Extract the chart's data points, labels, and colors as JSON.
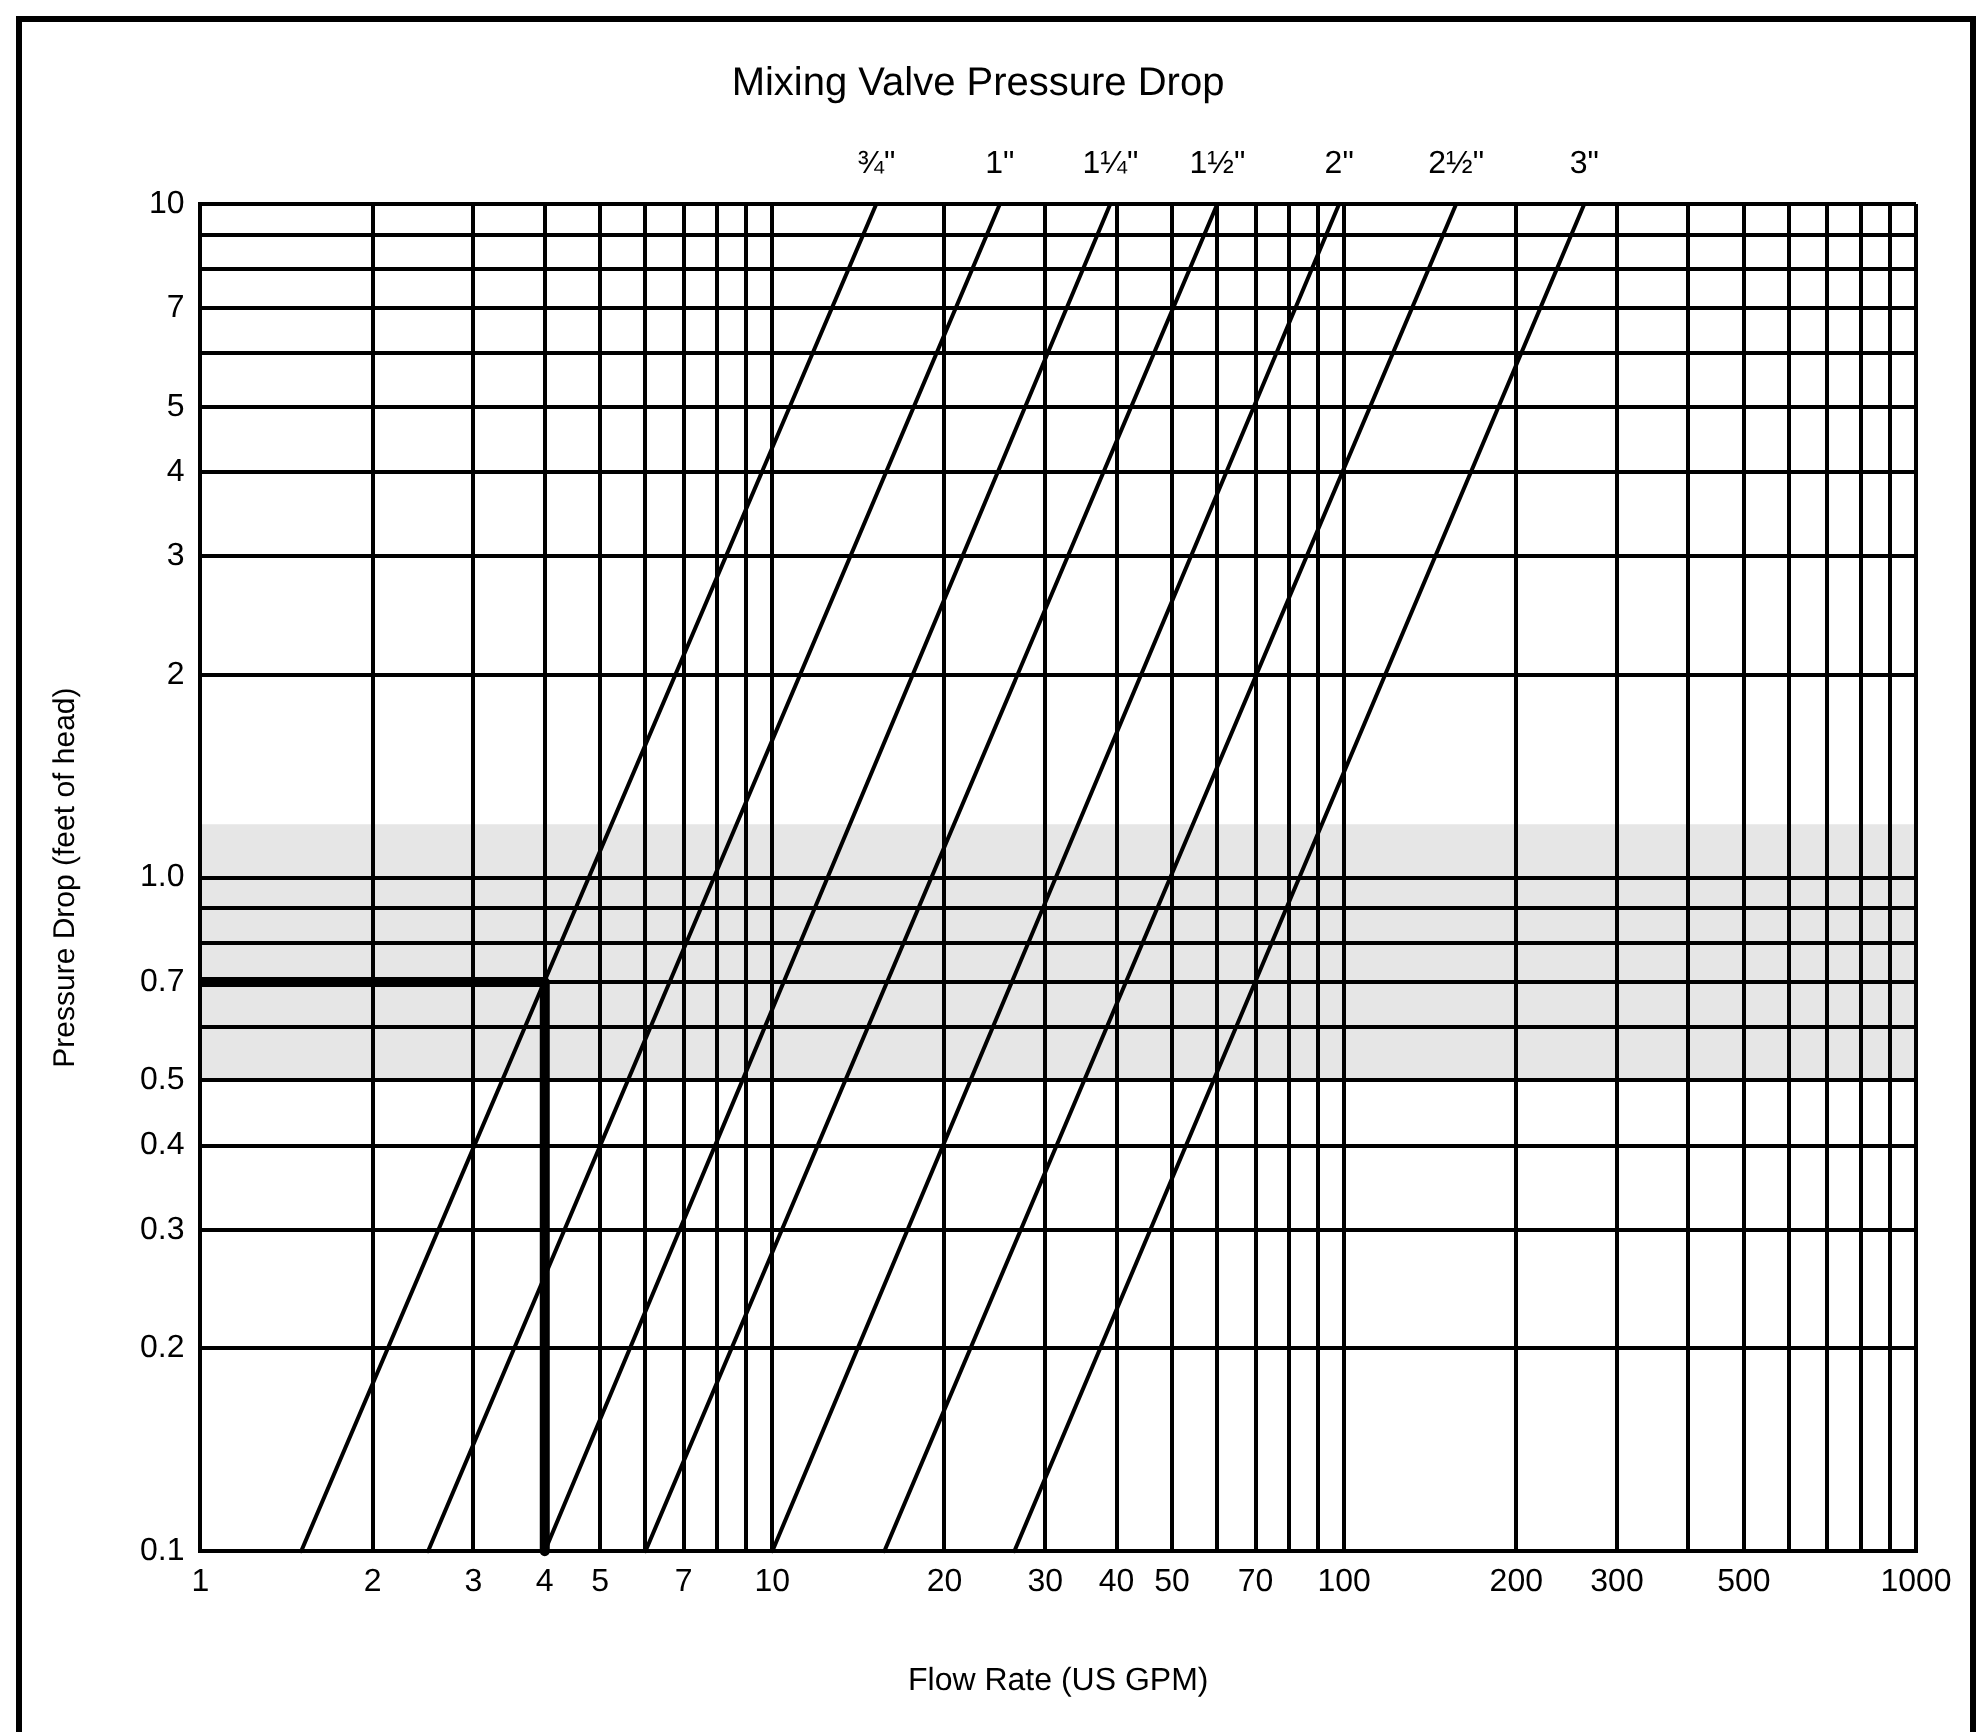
{
  "chart_data": {
    "type": "line",
    "title": "Mixing Valve Pressure Drop",
    "xlabel": "Flow Rate (US GPM)",
    "ylabel": "Pressure Drop (feet of head)",
    "log": "xy",
    "grid": true,
    "legend": false,
    "marker": "none",
    "line_style": "solid",
    "xlim": [
      1,
      1000
    ],
    "ylim": [
      0.1,
      10
    ],
    "xticks": [
      1,
      2,
      3,
      4,
      5,
      {
        "value": 6,
        "label": null
      },
      7,
      {
        "value": 8,
        "label": null
      },
      {
        "value": 9,
        "label": null
      },
      10,
      20,
      30,
      40,
      50,
      {
        "value": 60,
        "label": null
      },
      70,
      {
        "value": 80,
        "label": null
      },
      {
        "value": 90,
        "label": null
      },
      100,
      200,
      300,
      {
        "value": 400,
        "label": null
      },
      500,
      {
        "value": 600,
        "label": null
      },
      {
        "value": 700,
        "label": null
      },
      {
        "value": 800,
        "label": null
      },
      {
        "value": 900,
        "label": null
      },
      1000
    ],
    "yticks": [
      {
        "value": 0.1,
        "label": "0.1"
      },
      0.2,
      0.3,
      0.4,
      0.5,
      {
        "value": 0.6,
        "label": null
      },
      0.7,
      {
        "value": 0.8,
        "label": null
      },
      {
        "value": 0.9,
        "label": null
      },
      {
        "value": 1,
        "label": "1.0"
      },
      2,
      3,
      4,
      5,
      {
        "value": 6,
        "label": null
      },
      7,
      {
        "value": 8,
        "label": null
      },
      {
        "value": 9,
        "label": null
      },
      10
    ],
    "bands": [
      {
        "axis": "y",
        "from": 0.5,
        "to": 1.2,
        "color": "#e6e6e6"
      }
    ],
    "series": [
      {
        "name": "¾\"",
        "color": "#000000",
        "x": [
          1.5,
          15.2
        ],
        "values": [
          0.1,
          10
        ]
      },
      {
        "name": "1\"",
        "color": "#000000",
        "x": [
          2.5,
          25
        ],
        "values": [
          0.1,
          10
        ]
      },
      {
        "name": "1¼\"",
        "color": "#000000",
        "x": [
          4,
          39
        ],
        "values": [
          0.1,
          10
        ]
      },
      {
        "name": "1½\"",
        "color": "#000000",
        "x": [
          6,
          60
        ],
        "values": [
          0.1,
          10
        ]
      },
      {
        "name": "2\"",
        "color": "#000000",
        "x": [
          10,
          98
        ],
        "values": [
          0.1,
          10
        ]
      },
      {
        "name": "2½\"",
        "color": "#000000",
        "x": [
          15.7,
          157
        ],
        "values": [
          0.1,
          10
        ]
      },
      {
        "name": "3\"",
        "color": "#000000",
        "x": [
          26.5,
          263
        ],
        "values": [
          0.1,
          10
        ]
      },
      {
        "color": "#000000",
        "x": [
          1,
          4,
          4
        ],
        "values": [
          0.7,
          0.7,
          0.1
        ]
      }
    ]
  }
}
